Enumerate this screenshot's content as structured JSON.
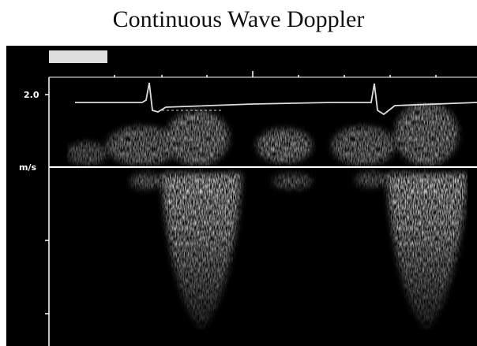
{
  "title": "Continuous Wave Doppler",
  "scale": {
    "top_label": "2.0",
    "unit": "m/s"
  }
}
